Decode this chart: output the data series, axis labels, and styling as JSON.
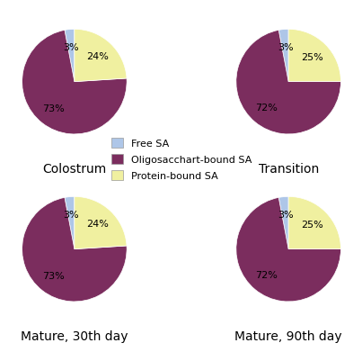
{
  "charts": [
    {
      "title": "Colostrum",
      "values": [
        3,
        73,
        24
      ]
    },
    {
      "title": "Transition",
      "values": [
        3,
        72,
        25
      ]
    },
    {
      "title": "Mature, 30th day",
      "values": [
        3,
        73,
        24
      ]
    },
    {
      "title": "Mature, 90th day",
      "values": [
        3,
        72,
        25
      ]
    }
  ],
  "colors": [
    "#aec6e8",
    "#7b2d5e",
    "#f0f0a0"
  ],
  "legend_labels": [
    "Free SA",
    "Oligosacchart-bound SA",
    "Protein-bound SA"
  ],
  "startangle": 90,
  "background_color": "#ffffff",
  "title_fontsize": 10,
  "label_fontsize": 8,
  "legend_fontsize": 8,
  "legend_handle_size": 10
}
